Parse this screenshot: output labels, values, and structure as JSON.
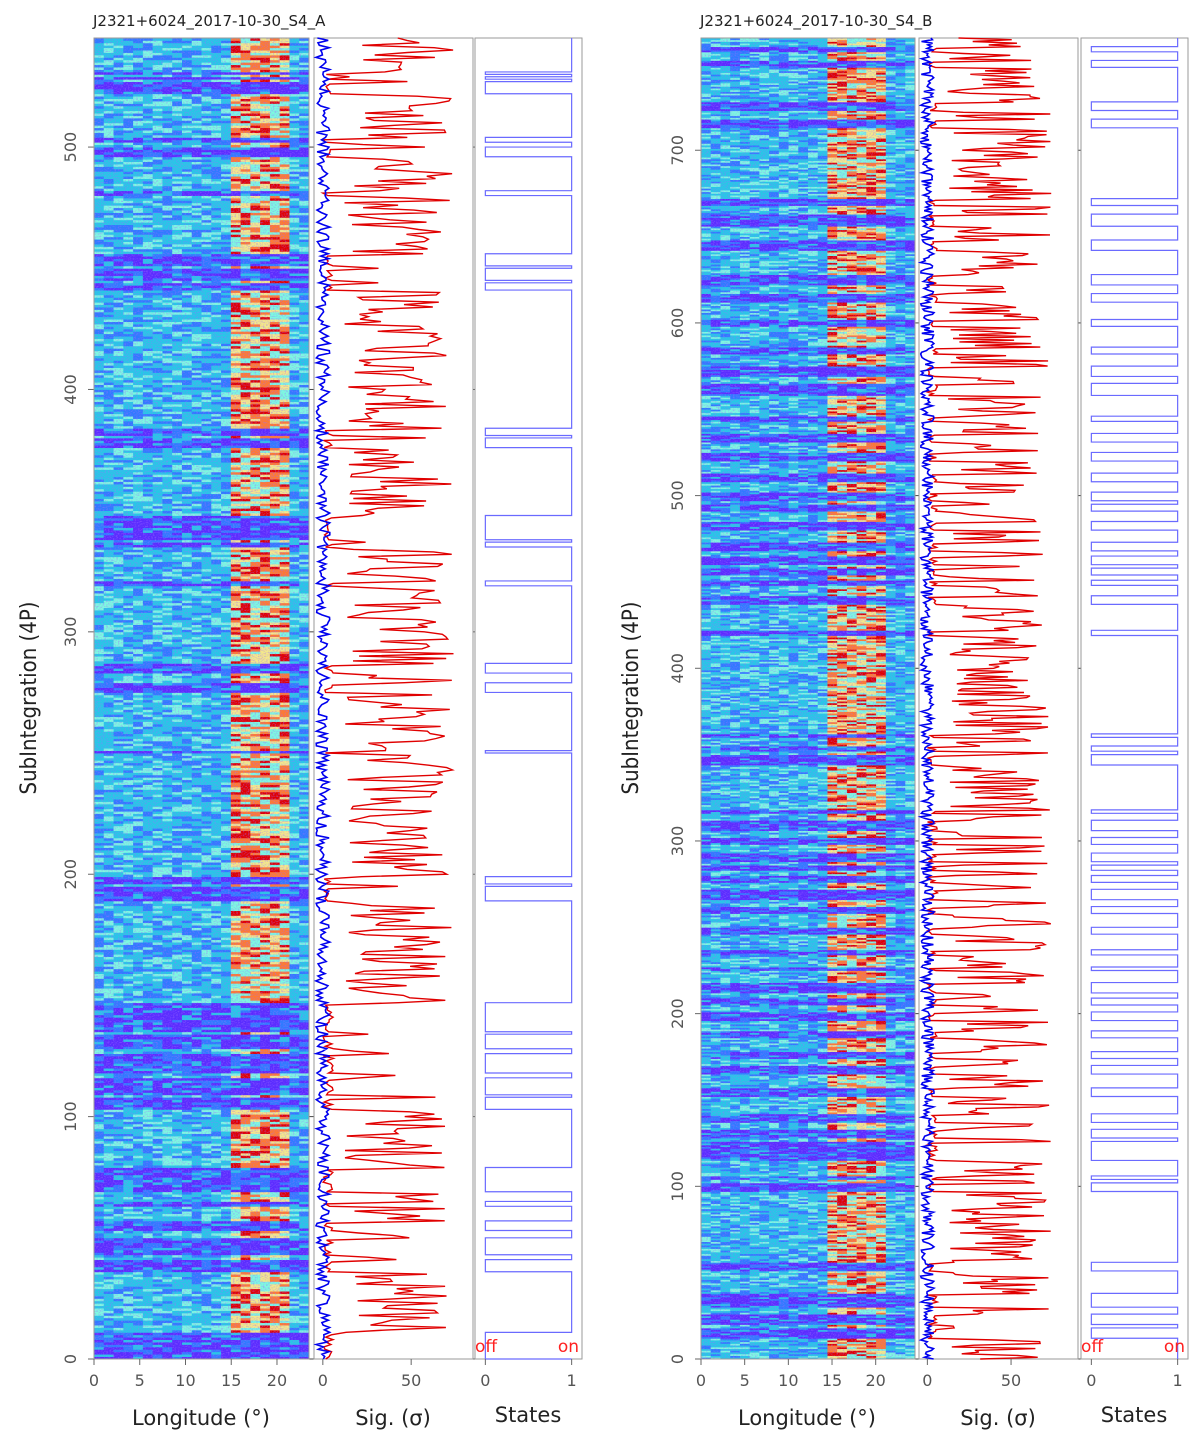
{
  "chart_data": [
    {
      "type": "heatmap",
      "title": "J2321+6024_2017-10-30_S4_A",
      "ylabel": "SubIntegration (4P)",
      "ylim": [
        0,
        545
      ],
      "yticks": [
        0,
        100,
        200,
        300,
        400,
        500
      ],
      "panels": [
        {
          "kind": "heatmap",
          "xlabel": "Longitude (°)",
          "xlim": [
            0,
            23.5
          ],
          "xticks": [
            0,
            5,
            10,
            15,
            20
          ],
          "bright_longitude_range": [
            15,
            21
          ],
          "colormap": [
            "#5a2cff",
            "#2f7bff",
            "#25c9e6",
            "#7dfae0",
            "#f4e98a",
            "#ff7a30",
            "#e00000"
          ]
        },
        {
          "kind": "line",
          "xlabel": "Sig. (σ)",
          "xlim": [
            -5,
            85
          ],
          "xticks": [
            0,
            50
          ],
          "series": [
            {
              "color": "#e00000"
            },
            {
              "color": "#0000ee"
            }
          ]
        },
        {
          "kind": "step",
          "xlabel": "States",
          "xlim": [
            -0.12,
            1.12
          ],
          "xticks": [
            0,
            1
          ],
          "state_labels": [
            "off",
            "on"
          ],
          "color": "#6a6aff",
          "off_intervals": [
            [
              0,
              11
            ],
            [
              36,
              41
            ],
            [
              43,
              50
            ],
            [
              53,
              57
            ],
            [
              63,
              65
            ],
            [
              69,
              79
            ],
            [
              103,
              108
            ],
            [
              109,
              116
            ],
            [
              118,
              126
            ],
            [
              128,
              134
            ],
            [
              135,
              147
            ],
            [
              189,
              195
            ],
            [
              196,
              199
            ],
            [
              250,
              251
            ],
            [
              275,
              279
            ],
            [
              283,
              287
            ],
            [
              319,
              321
            ],
            [
              335,
              337
            ],
            [
              338,
              348
            ],
            [
              376,
              380
            ],
            [
              381,
              384
            ],
            [
              441,
              444
            ],
            [
              445,
              450
            ],
            [
              451,
              456
            ],
            [
              480,
              482
            ],
            [
              496,
              500
            ],
            [
              502,
              504
            ],
            [
              522,
              527
            ],
            [
              528,
              529
            ],
            [
              530,
              531
            ]
          ]
        }
      ]
    },
    {
      "type": "heatmap",
      "title": "J2321+6024_2017-10-30_S4_B",
      "ylabel": "SubIntegration (4P)",
      "ylim": [
        0,
        765
      ],
      "yticks": [
        0,
        100,
        200,
        300,
        400,
        500,
        600,
        700
      ],
      "panels": [
        {
          "kind": "heatmap",
          "xlabel": "Longitude (°)",
          "xlim": [
            0,
            24.5
          ],
          "xticks": [
            0,
            5,
            10,
            15,
            20
          ],
          "bright_longitude_range": [
            15,
            21
          ],
          "colormap": [
            "#5a2cff",
            "#2f7bff",
            "#25c9e6",
            "#7dfae0",
            "#f4e98a",
            "#ff7a30",
            "#e00000"
          ]
        },
        {
          "kind": "line",
          "xlabel": "Sig. (σ)",
          "xlim": [
            -5,
            90
          ],
          "xticks": [
            0,
            50
          ],
          "series": [
            {
              "color": "#e00000"
            },
            {
              "color": "#0000ee"
            }
          ]
        },
        {
          "kind": "step",
          "xlabel": "States",
          "xlim": [
            -0.12,
            1.12
          ],
          "xticks": [
            0,
            1
          ],
          "state_labels": [
            "off",
            "on"
          ],
          "color": "#6a6aff",
          "off_intervals": [
            [
              12,
              18
            ],
            [
              20,
              26
            ],
            [
              30,
              38
            ],
            [
              51,
              56
            ],
            [
              97,
              102
            ],
            [
              104,
              106
            ],
            [
              115,
              126
            ],
            [
              128,
              133
            ],
            [
              137,
              142
            ],
            [
              152,
              157
            ],
            [
              165,
              170
            ],
            [
              174,
              178
            ],
            [
              186,
              190
            ],
            [
              196,
              201
            ],
            [
              205,
              209
            ],
            [
              212,
              218
            ],
            [
              225,
              227
            ],
            [
              234,
              237
            ],
            [
              246,
              250
            ],
            [
              258,
              262
            ],
            [
              266,
              272
            ],
            [
              276,
              280
            ],
            [
              283,
              286
            ],
            [
              288,
              293
            ],
            [
              298,
              302
            ],
            [
              306,
              312
            ],
            [
              316,
              318
            ],
            [
              344,
              350
            ],
            [
              352,
              355
            ],
            [
              360,
              362
            ],
            [
              419,
              422
            ],
            [
              437,
              442
            ],
            [
              448,
              451
            ],
            [
              454,
              458
            ],
            [
              460,
              465
            ],
            [
              468,
              473
            ],
            [
              480,
              485
            ],
            [
              491,
              495
            ],
            [
              497,
              502
            ],
            [
              508,
              513
            ],
            [
              520,
              525
            ],
            [
              531,
              536
            ],
            [
              543,
              546
            ],
            [
              558,
              565
            ],
            [
              569,
              575
            ],
            [
              582,
              586
            ],
            [
              598,
              602
            ],
            [
              612,
              617
            ],
            [
              622,
              628
            ],
            [
              642,
              648
            ],
            [
              656,
              663
            ],
            [
              668,
              672
            ],
            [
              713,
              718
            ],
            [
              723,
              728
            ],
            [
              748,
              752
            ],
            [
              757,
              760
            ]
          ]
        }
      ]
    }
  ]
}
